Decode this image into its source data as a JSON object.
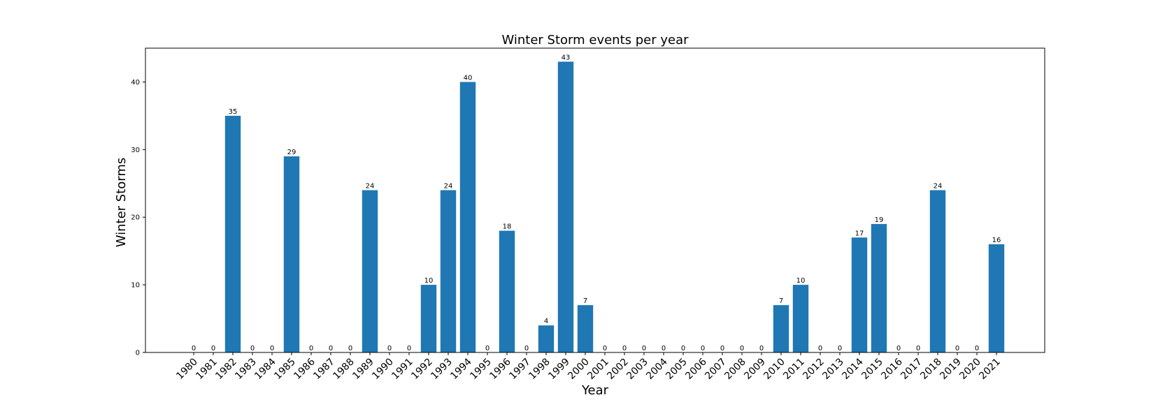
{
  "chart_data": {
    "type": "bar",
    "title": "Winter Storm events per year",
    "xlabel": "Year",
    "ylabel": "Winter Storms",
    "ylim": [
      0,
      45
    ],
    "yticks": [
      0,
      10,
      20,
      30,
      40
    ],
    "grid": false,
    "bar_color": "#1f77b4",
    "categories": [
      "1980",
      "1981",
      "1982",
      "1983",
      "1984",
      "1985",
      "1986",
      "1987",
      "1988",
      "1989",
      "1990",
      "1991",
      "1992",
      "1993",
      "1994",
      "1995",
      "1996",
      "1997",
      "1998",
      "1999",
      "2000",
      "2001",
      "2002",
      "2003",
      "2004",
      "2005",
      "2006",
      "2007",
      "2008",
      "2009",
      "2010",
      "2011",
      "2012",
      "2013",
      "2014",
      "2015",
      "2016",
      "2017",
      "2018",
      "2019",
      "2020",
      "2021"
    ],
    "values": [
      0,
      0,
      35,
      0,
      0,
      29,
      0,
      0,
      0,
      24,
      0,
      0,
      10,
      24,
      40,
      0,
      18,
      0,
      4,
      43,
      7,
      0,
      0,
      0,
      0,
      0,
      0,
      0,
      0,
      0,
      7,
      10,
      0,
      0,
      17,
      19,
      0,
      0,
      24,
      0,
      0,
      16
    ]
  }
}
